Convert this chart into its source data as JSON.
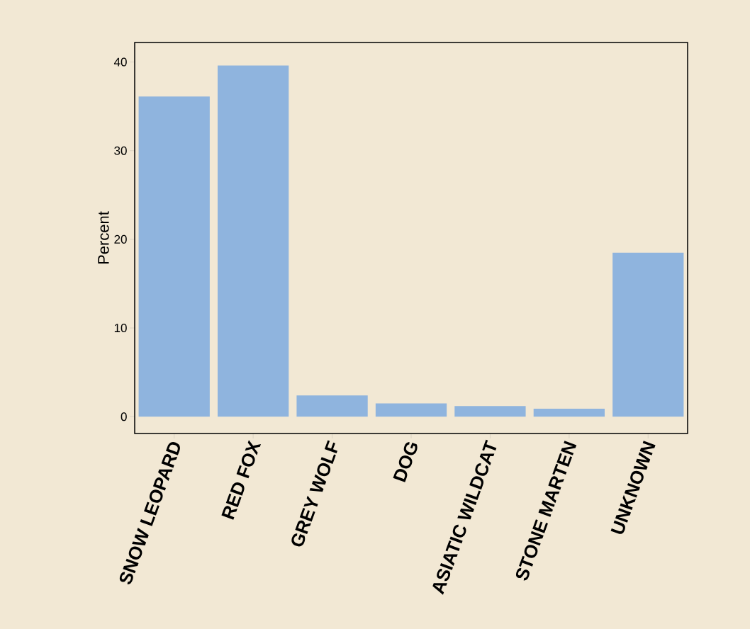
{
  "chart_data": {
    "type": "bar",
    "ylabel": "Percent",
    "categories": [
      "SNOW LEOPARD",
      "RED FOX",
      "GREY WOLF",
      "DOG",
      "ASIATIC WILDCAT",
      "STONE MARTEN",
      "UNKNOWN"
    ],
    "values": [
      36.1,
      39.6,
      2.4,
      1.5,
      1.2,
      0.9,
      18.5
    ],
    "color": "#8fb4de",
    "ylim": [
      -1.9,
      42.2
    ],
    "yticks": [
      0,
      10,
      20,
      30,
      40
    ],
    "grid": false
  }
}
